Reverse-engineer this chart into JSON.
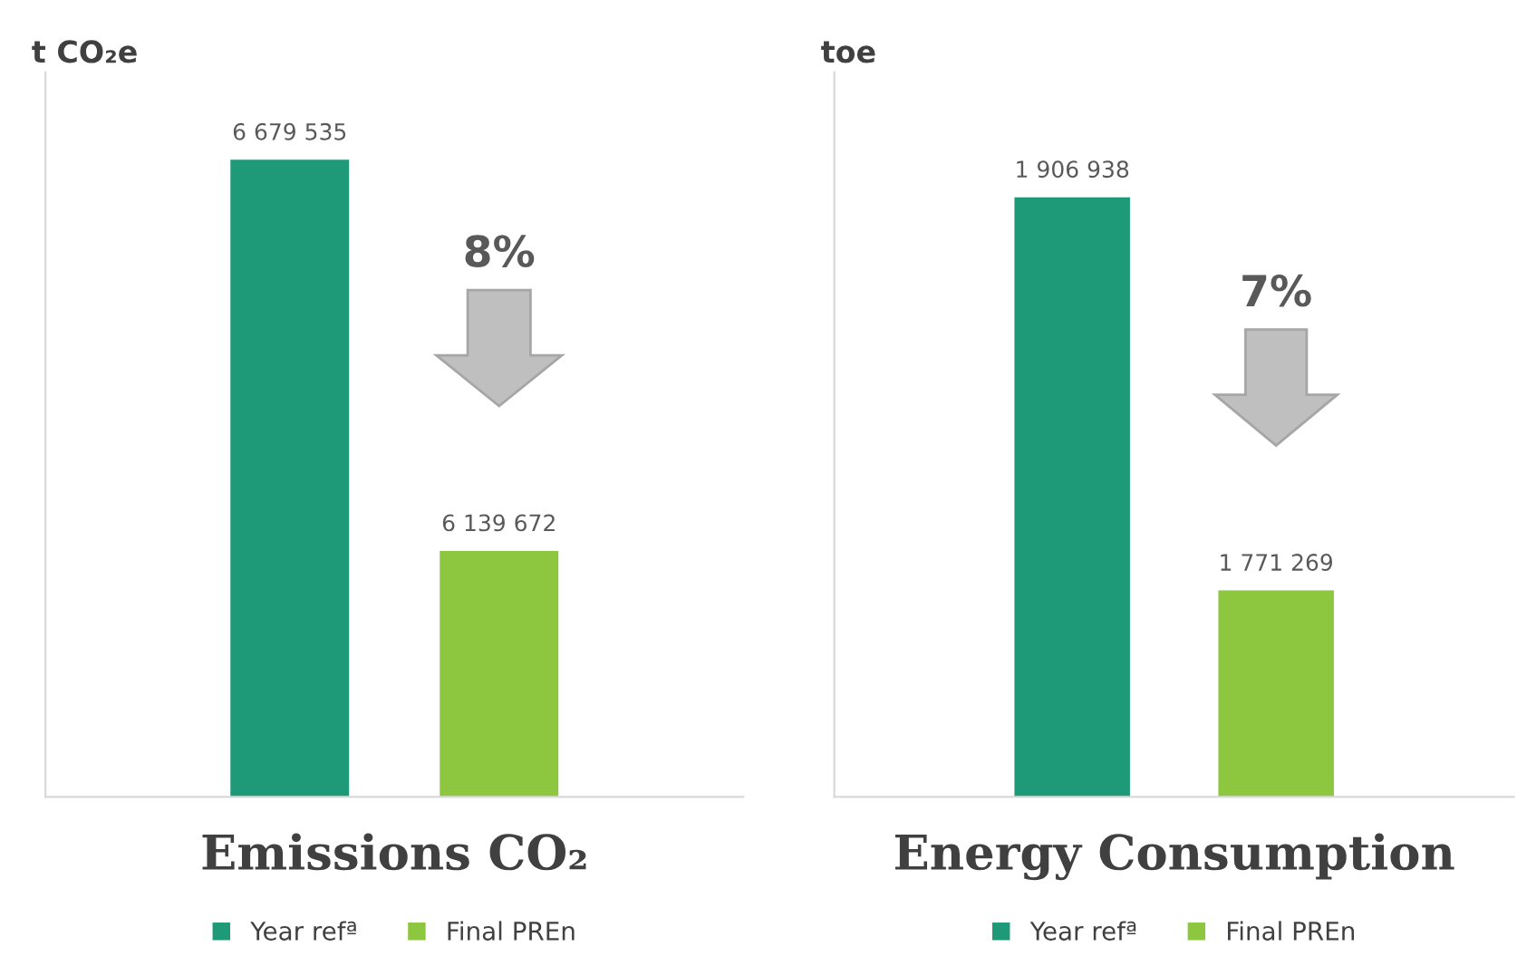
{
  "chart_data": [
    {
      "type": "bar",
      "title": "Emissions CO₂",
      "ylabel": "t CO₂e",
      "categories": [
        null
      ],
      "ylim": [
        5800000,
        6800000
      ],
      "tick_labels": false,
      "data_labels": true,
      "legend": "bottom",
      "grid": false,
      "annotations": [
        "8%"
      ],
      "series": [
        {
          "name": "Year refª",
          "color": "#1e9a78",
          "values": [
            6679535
          ]
        },
        {
          "name": "Final PREn",
          "color": "#8dc63f",
          "values": [
            6139672
          ]
        }
      ]
    },
    {
      "type": "bar",
      "title": "Energy Consumption",
      "ylabel": "toe",
      "categories": [
        null
      ],
      "ylim": [
        1700000,
        1950000
      ],
      "tick_labels": false,
      "data_labels": true,
      "legend": "bottom",
      "grid": false,
      "annotations": [
        "7%"
      ],
      "series": [
        {
          "name": "Year refª",
          "color": "#1e9a78",
          "values": [
            1906938
          ]
        },
        {
          "name": "Final PREn",
          "color": "#8dc63f",
          "values": [
            1771269
          ]
        }
      ]
    }
  ]
}
